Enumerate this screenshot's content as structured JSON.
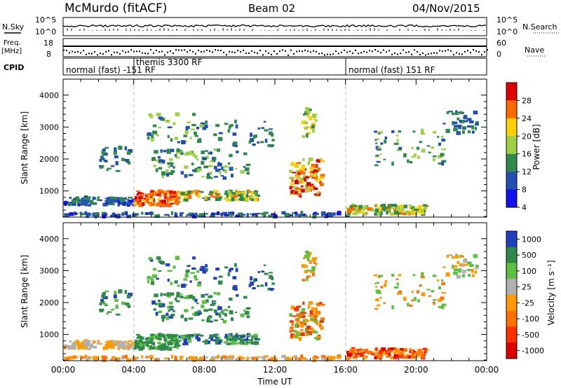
{
  "header": {
    "station": "McMurdo (fitACF)",
    "beam": "Beam 02",
    "date": "04/Nov/2015"
  },
  "strips": {
    "nsky_label": "N.Sky",
    "nsearch_label": "N.Search",
    "noise_ticks_left": [
      "10^5",
      "10^0"
    ],
    "noise_ticks_right": [
      "10^5",
      "10^0"
    ],
    "freq_label": "Freq.",
    "freq_unit": "[MHz]",
    "freq_ticks": [
      "18",
      "8"
    ],
    "nave_label": "Nave",
    "nave_ticks": [
      "60",
      "0"
    ],
    "cpid_label": "CPID",
    "cpid_segments": [
      {
        "start_hour": 0,
        "text": "normal (fast) -151 RF"
      },
      {
        "start_hour": 4,
        "text": "themis 3300 RF"
      },
      {
        "start_hour": 16,
        "text": "normal (fast) 151 RF"
      }
    ]
  },
  "chart_data": [
    {
      "type": "heatmap",
      "name": "power",
      "ylabel": "Slant Range [km]",
      "xlabel": "",
      "x_range_hours": [
        0,
        24
      ],
      "ylim": [
        180,
        4500
      ],
      "yticks": [
        "1000",
        "2000",
        "3000",
        "4000"
      ],
      "colorbar": {
        "label": "Power [dB]",
        "ticks": [
          "28",
          "24",
          "20",
          "16",
          "12",
          "8",
          "4"
        ],
        "colors": [
          "#e00000",
          "#ff6a00",
          "#ffd000",
          "#9ed040",
          "#2e8a4a",
          "#2050b0",
          "#1010f0"
        ]
      },
      "dashed_markers_hours": [
        4,
        16
      ]
    },
    {
      "type": "heatmap",
      "name": "velocity",
      "ylabel": "Slant Range [km]",
      "xlabel": "Time UT",
      "x_range_hours": [
        0,
        24
      ],
      "ylim": [
        180,
        4500
      ],
      "yticks": [
        "1000",
        "2000",
        "3000",
        "4000"
      ],
      "xticks": [
        "00:00",
        "04:00",
        "08:00",
        "12:00",
        "16:00",
        "20:00",
        "00:00"
      ],
      "colorbar": {
        "label": "Velocity [m s⁻¹]",
        "ticks": [
          "1000",
          "500",
          "100",
          "25",
          "-25",
          "-100",
          "-500",
          "-1000"
        ],
        "colors": [
          "#2040c0",
          "#2e8a4a",
          "#5cc040",
          "#b0b0b0",
          "#ff9a00",
          "#ff7000",
          "#ff3000",
          "#e00000"
        ]
      },
      "dashed_markers_hours": [
        4,
        16
      ]
    }
  ]
}
